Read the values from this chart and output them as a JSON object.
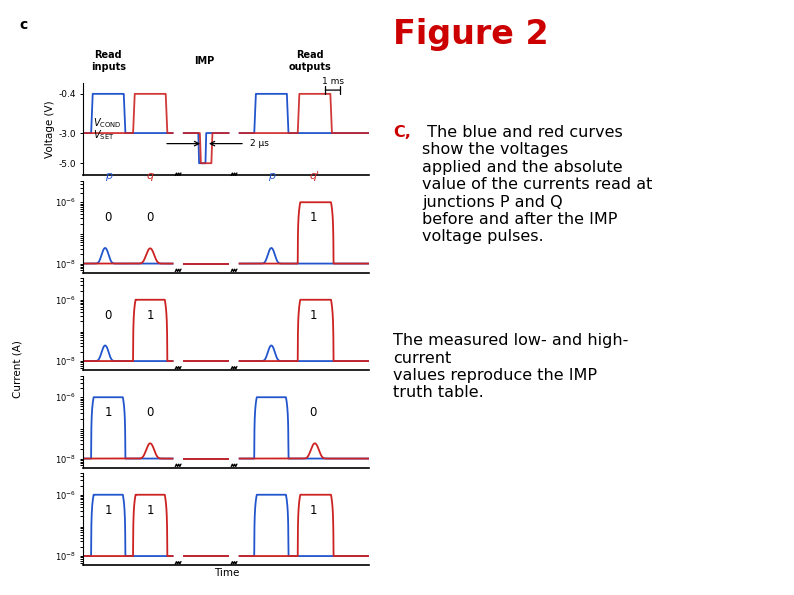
{
  "title": "Figure 2",
  "title_color": "#cc0000",
  "label_c": "c",
  "read_inputs_label": "Read\ninputs",
  "imp_label": "IMP",
  "read_outputs_label": "Read\noutputs",
  "voltage_ylabel": "Voltage (V)",
  "current_ylabel": "Current (A)",
  "time_xlabel": "Time",
  "annotation_1ms": "1 ms",
  "annotation_2us": "2 μs",
  "blue_color": "#2255cc",
  "red_color": "#cc2222",
  "black_color": "#111111",
  "caption_c_text": "C,",
  "caption_body": " The blue and red curves\nshow the voltages\napplied and the absolute\nvalue of the currents read at\njunctions P and Q\nbefore and after the IMP\nvoltage pulses.",
  "caption_body2": "The measured low- and high-\ncurrent\nvalues reproduce the IMP\ntruth table.",
  "digit_labels": [
    {
      "p_in": 0,
      "q_in": 0,
      "q_out": 1
    },
    {
      "p_in": 0,
      "q_in": 1,
      "q_out": 1
    },
    {
      "p_in": 1,
      "q_in": 0,
      "q_out": 0
    },
    {
      "p_in": 1,
      "q_in": 1,
      "q_out": 1
    }
  ],
  "HIGH": 1e-06,
  "LOW": 1e-08,
  "volt_yticks": [
    -0.4,
    -3.0,
    -5.0
  ],
  "volt_ylim": [
    -5.8,
    0.3
  ],
  "curr_ylim_log": [
    -8.3,
    -5.3
  ]
}
